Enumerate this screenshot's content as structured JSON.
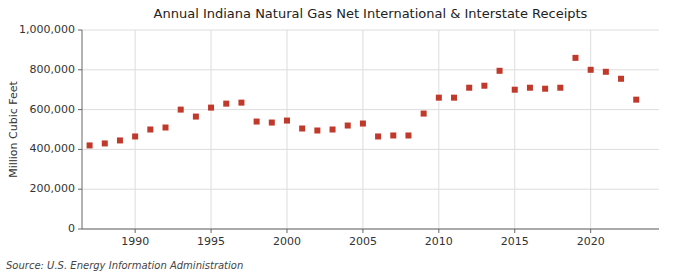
{
  "chart_data": {
    "type": "scatter",
    "title": "Annual Indiana Natural Gas Net International & Interstate Receipts",
    "ylabel": "Million Cubic Feet",
    "annotations": [
      "Source: U.S. Energy Information Administration"
    ],
    "x": [
      1987,
      1988,
      1989,
      1990,
      1991,
      1992,
      1993,
      1994,
      1995,
      1996,
      1997,
      1998,
      1999,
      2000,
      2001,
      2002,
      2003,
      2004,
      2005,
      2006,
      2007,
      2008,
      2009,
      2010,
      2011,
      2012,
      2013,
      2014,
      2015,
      2016,
      2017,
      2018,
      2019,
      2020,
      2021,
      2022,
      2023
    ],
    "values": [
      420000,
      430000,
      445000,
      465000,
      500000,
      510000,
      600000,
      565000,
      610000,
      630000,
      635000,
      540000,
      535000,
      545000,
      505000,
      495000,
      500000,
      520000,
      530000,
      465000,
      470000,
      470000,
      580000,
      660000,
      660000,
      710000,
      720000,
      795000,
      700000,
      710000,
      705000,
      710000,
      860000,
      800000,
      790000,
      755000,
      650000
    ],
    "color": "#c0392b",
    "marker": "square",
    "xlim": [
      1986.5,
      2024.5
    ],
    "xticks": [
      1990,
      1995,
      2000,
      2005,
      2010,
      2015,
      2020
    ],
    "ylim": [
      0,
      1000000
    ],
    "yticks": [
      0,
      {
        "value": 200000,
        "label": "200,000"
      },
      {
        "value": 400000,
        "label": "400,000"
      },
      {
        "value": 600000,
        "label": "600,000"
      },
      {
        "value": 800000,
        "label": "800,000"
      },
      {
        "value": 1000000,
        "label": "1,000,000"
      }
    ],
    "grid": true
  }
}
